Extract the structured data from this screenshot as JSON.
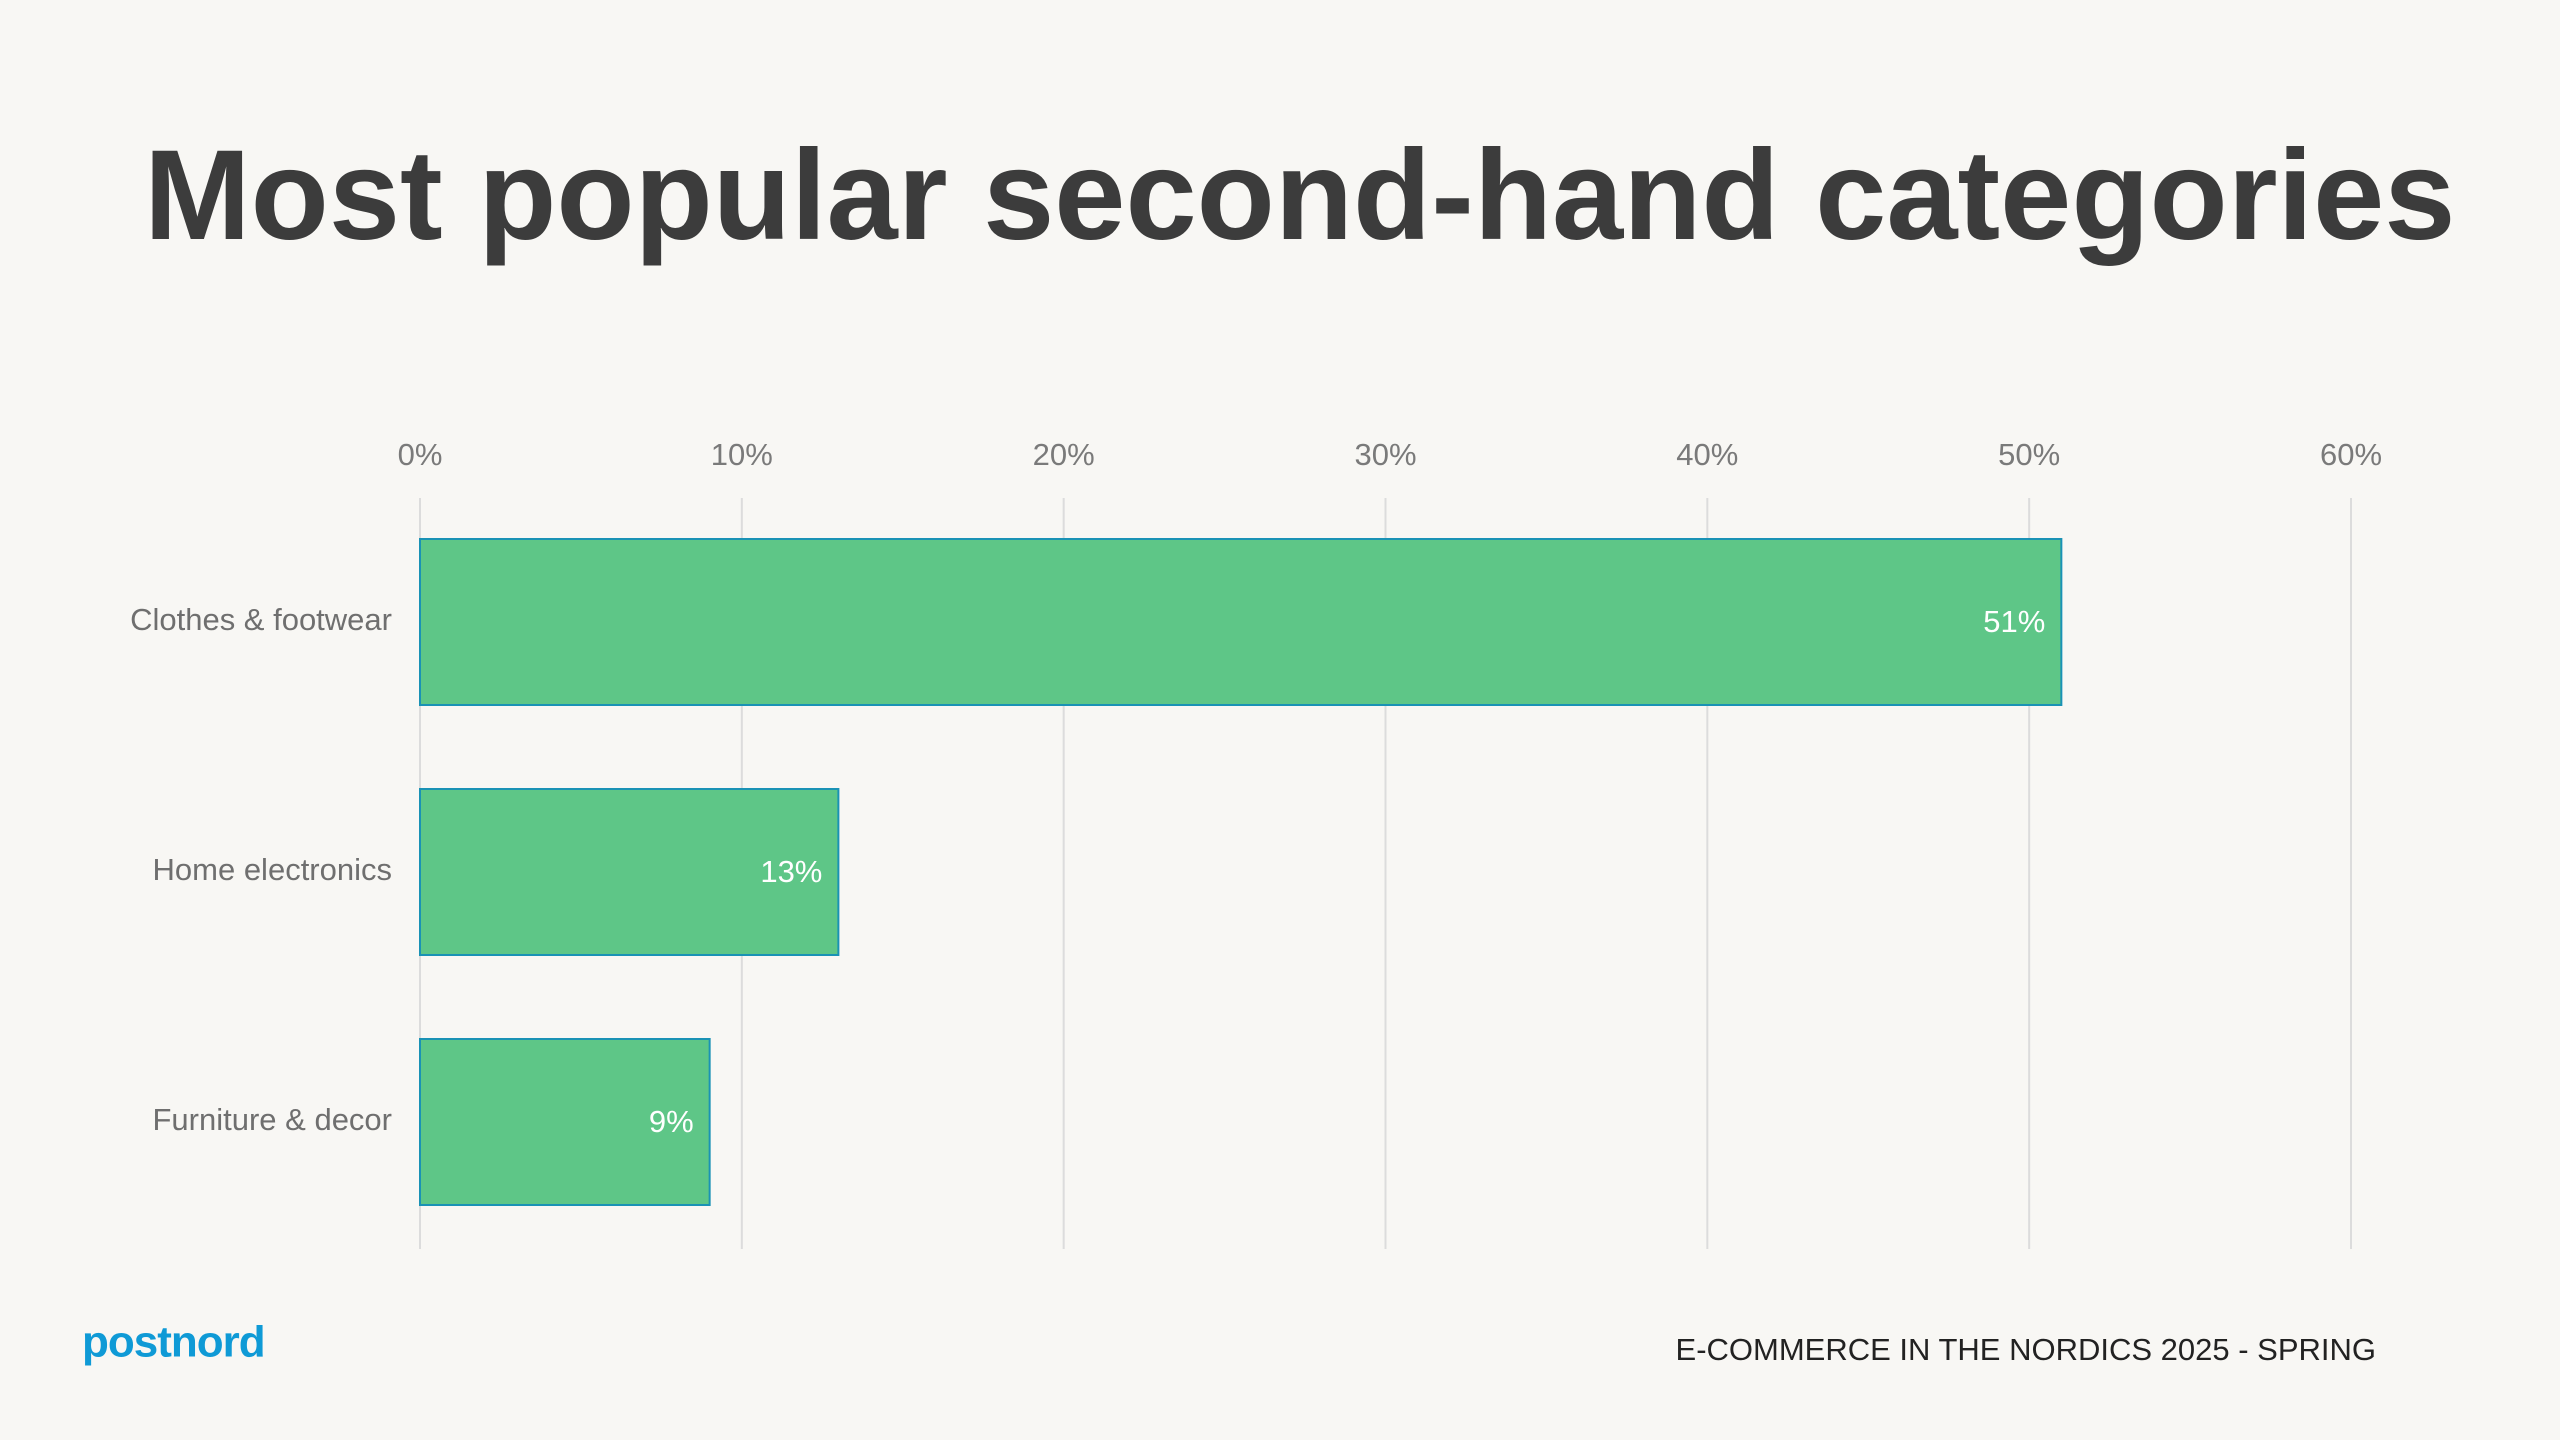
{
  "chart_data": {
    "type": "bar",
    "orientation": "horizontal",
    "title": "Most popular second-hand categories",
    "categories": [
      "Clothes & footwear",
      "Home electronics",
      "Furniture & decor"
    ],
    "values": [
      51,
      13,
      9
    ],
    "value_labels": [
      "51%",
      "13%",
      "9%"
    ],
    "color": "#5ec687",
    "xlim": [
      0,
      60
    ],
    "xticks": [
      {
        "value": 0,
        "label": "0%"
      },
      {
        "value": 10,
        "label": "10%"
      },
      {
        "value": 20,
        "label": "20%"
      },
      {
        "value": 30,
        "label": "30%"
      },
      {
        "value": 40,
        "label": "40%"
      },
      {
        "value": 50,
        "label": "50%"
      },
      {
        "value": 60,
        "label": "60%"
      }
    ],
    "grid": true
  },
  "brand": "postnord",
  "footer": "E-COMMERCE IN THE NORDICS 2025 - SPRING"
}
